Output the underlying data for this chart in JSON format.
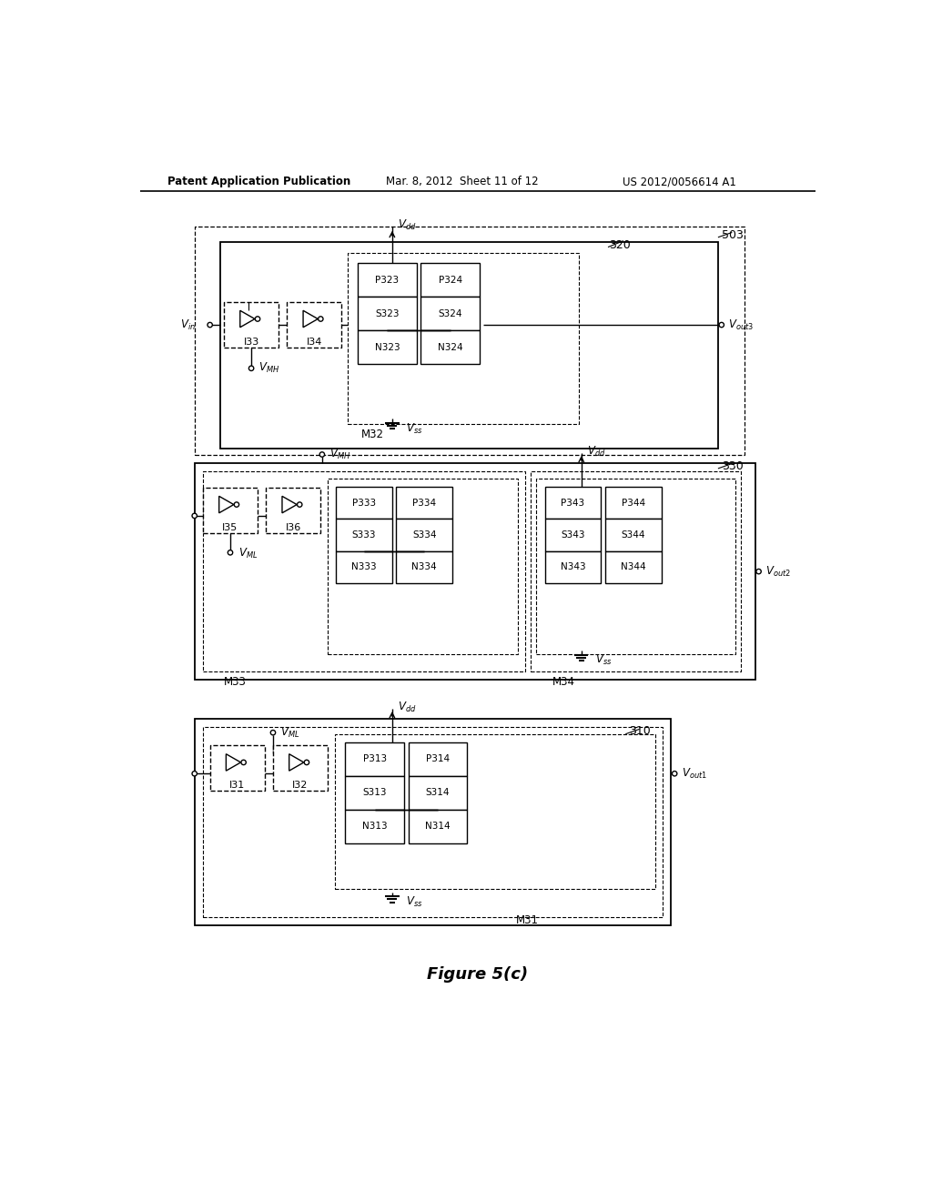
{
  "bg_color": "#ffffff",
  "header_left": "Patent Application Publication",
  "header_mid": "Mar. 8, 2012  Sheet 11 of 12",
  "header_right": "US 2012/0056614 A1",
  "figure_label": "Figure 5(c)"
}
